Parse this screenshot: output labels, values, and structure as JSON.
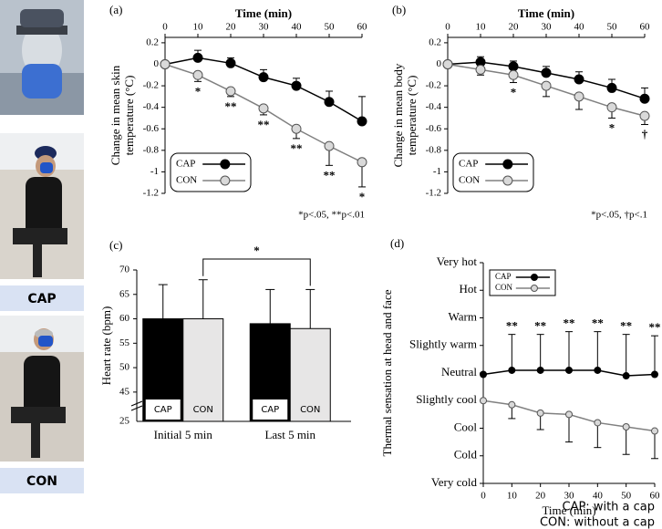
{
  "photo_labels": [
    "CAP",
    "CON"
  ],
  "notes": [
    "CAP: with a cap",
    "CON: without a cap"
  ],
  "chart_data": [
    {
      "type": "line",
      "title": "(a)",
      "xlabel": "Time (min)",
      "ylabel": [
        "Change in mean skin",
        "temperature (°C)"
      ],
      "x": [
        0,
        10,
        20,
        30,
        40,
        50,
        60
      ],
      "xlim": [
        0,
        60
      ],
      "xticks": [
        0,
        10,
        20,
        30,
        40,
        50,
        60
      ],
      "xaxis_position": "top",
      "ylim": [
        -1.2,
        0.25
      ],
      "yticks": [
        0.2,
        0,
        -0.2,
        -0.4,
        -0.6,
        -0.8,
        -1,
        -1.2
      ],
      "series": [
        {
          "name": "CAP",
          "color": "#000000",
          "marker_fill": "#000000",
          "values": [
            0,
            0.06,
            0.01,
            -0.12,
            -0.2,
            -0.35,
            -0.53
          ],
          "errors": [
            0,
            0.07,
            0.05,
            0.07,
            0.07,
            0.1,
            0.23
          ],
          "error_side": "upper"
        },
        {
          "name": "CON",
          "color": "#808080",
          "marker_fill": "#d9d9d9",
          "values": [
            0,
            -0.1,
            -0.25,
            -0.41,
            -0.6,
            -0.76,
            -0.91
          ],
          "errors": [
            0,
            0.06,
            0.05,
            0.06,
            0.09,
            0.18,
            0.23
          ],
          "error_side": "lower"
        }
      ],
      "annotations": [
        {
          "x": 10,
          "text": "*"
        },
        {
          "x": 20,
          "text": "**"
        },
        {
          "x": 30,
          "text": "**"
        },
        {
          "x": 40,
          "text": "**"
        },
        {
          "x": 50,
          "text": "**"
        },
        {
          "x": 60,
          "text": "*"
        }
      ],
      "annotation_side": "below",
      "legend": "lower left",
      "note": "*p<.05, **p<.01"
    },
    {
      "type": "line",
      "title": "(b)",
      "xlabel": "Time (min)",
      "ylabel": [
        "Change in mean body",
        "temperature (°C)"
      ],
      "x": [
        0,
        10,
        20,
        30,
        40,
        50,
        60
      ],
      "xlim": [
        0,
        60
      ],
      "xticks": [
        0,
        10,
        20,
        30,
        40,
        50,
        60
      ],
      "xaxis_position": "top",
      "ylim": [
        -1.2,
        0.25
      ],
      "yticks": [
        0.2,
        0,
        -0.2,
        -0.4,
        -0.6,
        -0.8,
        -1,
        -1.2
      ],
      "series": [
        {
          "name": "CAP",
          "color": "#000000",
          "marker_fill": "#000000",
          "values": [
            0,
            0.02,
            -0.02,
            -0.08,
            -0.14,
            -0.22,
            -0.32
          ],
          "errors": [
            0,
            0.05,
            0.05,
            0.06,
            0.07,
            0.08,
            0.1
          ],
          "error_side": "upper"
        },
        {
          "name": "CON",
          "color": "#808080",
          "marker_fill": "#d9d9d9",
          "values": [
            0,
            -0.05,
            -0.1,
            -0.2,
            -0.3,
            -0.4,
            -0.48
          ],
          "errors": [
            0,
            0.05,
            0.07,
            0.1,
            0.12,
            0.1,
            0.08
          ],
          "error_side": "lower"
        }
      ],
      "annotations": [
        {
          "x": 20,
          "text": "*"
        },
        {
          "x": 50,
          "text": "*"
        },
        {
          "x": 60,
          "text": "†"
        }
      ],
      "annotation_side": "below",
      "legend": "lower left",
      "note": "*p<.05, †p<.1"
    },
    {
      "type": "bar",
      "title": "(c)",
      "ylabel": "Heart rate (bpm)",
      "categories": [
        "Initial 5 min",
        "Last 5 min"
      ],
      "ylim": [
        39,
        70
      ],
      "yticks": [
        45,
        50,
        55,
        60,
        65,
        70
      ],
      "axis_break_label": "25",
      "series": [
        {
          "name": "CAP",
          "color": "#000000",
          "values": [
            60,
            59
          ],
          "errors": [
            7,
            7
          ]
        },
        {
          "name": "CON",
          "color": "#e7e6e6",
          "values": [
            60,
            58
          ],
          "errors": [
            8,
            8
          ]
        }
      ],
      "significance": "*"
    },
    {
      "type": "line",
      "title": "(d)",
      "xlabel": "Time (min)",
      "ylabel": "Thermal sensation at head and face",
      "x": [
        0,
        10,
        20,
        30,
        40,
        50,
        60
      ],
      "xlim": [
        0,
        60
      ],
      "xticks": [
        0,
        10,
        20,
        30,
        40,
        50,
        60
      ],
      "xaxis_position": "bottom",
      "ylim": [
        -4,
        4
      ],
      "yticks": [
        {
          "value": 4,
          "label": "Very hot"
        },
        {
          "value": 3,
          "label": "Hot"
        },
        {
          "value": 2,
          "label": "Warm"
        },
        {
          "value": 1,
          "label": "Slightly warm"
        },
        {
          "value": 0,
          "label": "Neutral"
        },
        {
          "value": -1,
          "label": "Slightly cool"
        },
        {
          "value": -2,
          "label": "Cool"
        },
        {
          "value": -3,
          "label": "Cold"
        },
        {
          "value": -4,
          "label": "Very cold"
        }
      ],
      "series": [
        {
          "name": "CAP",
          "color": "#000000",
          "marker_fill": "#000000",
          "values": [
            -0.05,
            0.1,
            0.1,
            0.1,
            0.1,
            -0.1,
            -0.05
          ],
          "errors": [
            0,
            1.3,
            1.3,
            1.4,
            1.4,
            1.5,
            1.4
          ],
          "error_side": "upper"
        },
        {
          "name": "CON",
          "color": "#808080",
          "marker_fill": "#d9d9d9",
          "values": [
            -1,
            -1.15,
            -1.45,
            -1.5,
            -1.8,
            -1.95,
            -2.1
          ],
          "errors": [
            0,
            0.5,
            0.6,
            1.0,
            0.9,
            1.0,
            1.0
          ],
          "error_side": "lower"
        }
      ],
      "annotations": [
        {
          "x": 10,
          "text": "**"
        },
        {
          "x": 20,
          "text": "**"
        },
        {
          "x": 30,
          "text": "**"
        },
        {
          "x": 40,
          "text": "**"
        },
        {
          "x": 50,
          "text": "**"
        },
        {
          "x": 60,
          "text": "**"
        }
      ],
      "annotation_side": "above",
      "legend": "upper left"
    }
  ]
}
